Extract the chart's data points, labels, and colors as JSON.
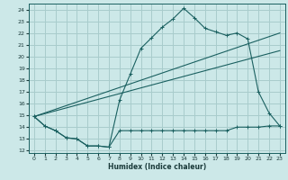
{
  "xlabel": "Humidex (Indice chaleur)",
  "bg_color": "#cce8e8",
  "grid_color": "#a8cccc",
  "line_color": "#1a6060",
  "xlim": [
    -0.5,
    23.5
  ],
  "ylim": [
    11.8,
    24.5
  ],
  "yticks": [
    12,
    13,
    14,
    15,
    16,
    17,
    18,
    19,
    20,
    21,
    22,
    23,
    24
  ],
  "xticks": [
    0,
    1,
    2,
    3,
    4,
    5,
    6,
    7,
    8,
    9,
    10,
    11,
    12,
    13,
    14,
    15,
    16,
    17,
    18,
    19,
    20,
    21,
    22,
    23
  ],
  "line1_x": [
    0,
    1,
    2,
    3,
    4,
    5,
    6,
    7,
    8,
    9,
    10,
    11,
    12,
    13,
    14,
    15,
    16,
    17,
    18,
    19,
    20,
    21,
    22,
    23
  ],
  "line1_y": [
    14.9,
    14.1,
    13.7,
    13.1,
    13.0,
    12.4,
    12.4,
    12.3,
    16.3,
    18.5,
    20.7,
    21.6,
    22.5,
    23.2,
    24.1,
    23.3,
    22.4,
    22.1,
    21.8,
    22.0,
    21.5,
    17.0,
    15.2,
    14.1
  ],
  "line2_x": [
    0,
    1,
    2,
    3,
    4,
    5,
    6,
    7,
    8,
    9,
    10,
    11,
    12,
    13,
    14,
    15,
    16,
    17,
    18,
    19,
    20,
    21,
    22,
    23
  ],
  "line2_y": [
    14.9,
    14.1,
    13.7,
    13.1,
    13.0,
    12.4,
    12.4,
    12.3,
    13.7,
    13.7,
    13.7,
    13.7,
    13.7,
    13.7,
    13.7,
    13.7,
    13.7,
    13.7,
    13.7,
    14.0,
    14.0,
    14.0,
    14.1,
    14.1
  ],
  "line3_x": [
    0,
    23
  ],
  "line3_y": [
    14.9,
    22.0
  ],
  "line4_x": [
    0,
    23
  ],
  "line4_y": [
    14.9,
    20.5
  ]
}
